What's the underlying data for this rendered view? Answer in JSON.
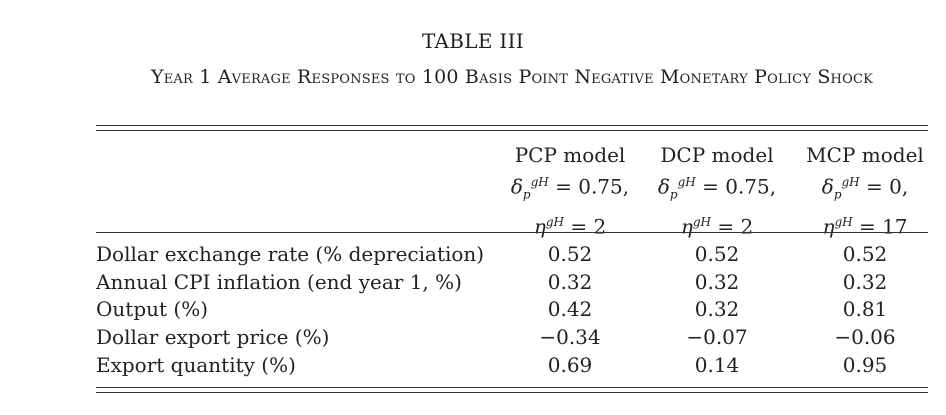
{
  "table": {
    "number": "TABLE III",
    "caption": "Year 1 Average Responses to 100 Basis Point Negative Monetary Policy Shock",
    "columns": [
      {
        "name": "PCP model",
        "delta": "= 0.75,",
        "eta": "= 2"
      },
      {
        "name": "DCP model",
        "delta": "= 0.75,",
        "eta": "= 2"
      },
      {
        "name": "MCP model",
        "delta": "= 0,",
        "eta": "= 17"
      }
    ],
    "rows": [
      {
        "label": "Dollar exchange rate (% depreciation)",
        "values": [
          "0.52",
          "0.52",
          "0.52"
        ]
      },
      {
        "label": "Annual CPI inflation (end year 1, %)",
        "values": [
          "0.32",
          "0.32",
          "0.32"
        ]
      },
      {
        "label": "Output (%)",
        "values": [
          "0.42",
          "0.32",
          "0.81"
        ]
      },
      {
        "label": "Dollar export price (%)",
        "values": [
          "−0.34",
          "−0.07",
          "−0.06"
        ]
      },
      {
        "label": "Export quantity (%)",
        "values": [
          "0.69",
          "0.14",
          "0.95"
        ]
      }
    ]
  }
}
